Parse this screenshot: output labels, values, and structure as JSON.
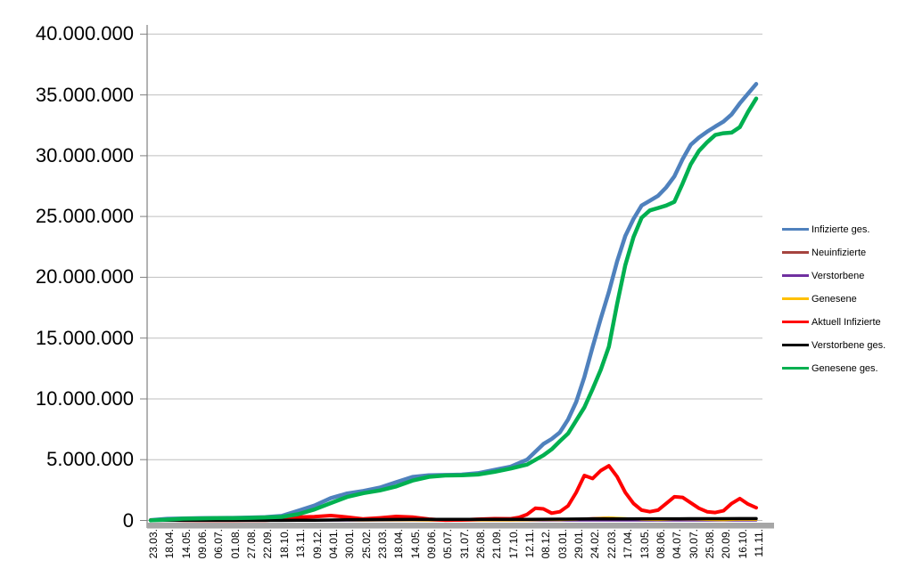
{
  "chart_data": {
    "type": "line",
    "title": "",
    "legend_position": "right",
    "grid": true,
    "y_axis": {
      "unit_millions": true,
      "min": 0,
      "max": 40,
      "ticks": [
        {
          "value": 0,
          "label": "0"
        },
        {
          "value": 5,
          "label": "5.000.000"
        },
        {
          "value": 10,
          "label": "10.000.000"
        },
        {
          "value": 15,
          "label": "15.000.000"
        },
        {
          "value": 20,
          "label": "20.000.000"
        },
        {
          "value": 25,
          "label": "25.000.000"
        },
        {
          "value": 30,
          "label": "30.000.000"
        },
        {
          "value": 35,
          "label": "35.000.000"
        },
        {
          "value": 40,
          "label": "40.000.000"
        }
      ]
    },
    "x_labels": [
      "23.03.",
      "18.04.",
      "14.05.",
      "09.06.",
      "06.07.",
      "01.08.",
      "27.08.",
      "22.09.",
      "18.10.",
      "13.11.",
      "09.12.",
      "04.01.",
      "30.01.",
      "25.02.",
      "23.03.",
      "18.04.",
      "14.05.",
      "09.06.",
      "05.07.",
      "31.07.",
      "26.08.",
      "21.09.",
      "17.10.",
      "12.11.",
      "08.12.",
      "03.01.",
      "29.01.",
      "24.02.",
      "22.03.",
      "17.04.",
      "13.05.",
      "08.06.",
      "04.07.",
      "30.07.",
      "25.08.",
      "20.09.",
      "16.10.",
      "11.11."
    ],
    "series": [
      {
        "id": "infizierte-ges",
        "name": "Infizierte ges.",
        "color": "#4F81BD",
        "line_width": 4.5,
        "x": [
          0,
          1,
          2,
          3,
          4,
          5,
          6,
          7,
          8,
          9,
          10,
          11,
          12,
          13,
          14,
          15,
          16,
          17,
          18,
          19,
          20,
          21,
          22,
          23,
          24,
          24.5,
          25,
          25.5,
          26,
          26.5,
          27,
          27.5,
          28,
          28.5,
          29,
          29.5,
          30,
          30.5,
          31,
          31.5,
          32,
          32.5,
          33,
          33.5,
          34,
          34.5,
          35,
          35.5,
          36,
          36.5,
          37
        ],
        "values": [
          0.03,
          0.14,
          0.17,
          0.19,
          0.2,
          0.21,
          0.24,
          0.28,
          0.37,
          0.8,
          1.22,
          1.84,
          2.22,
          2.43,
          2.7,
          3.15,
          3.58,
          3.71,
          3.74,
          3.77,
          3.89,
          4.16,
          4.42,
          5.0,
          6.29,
          6.7,
          7.24,
          8.3,
          9.74,
          11.8,
          14.25,
          16.6,
          18.8,
          21.3,
          23.4,
          24.8,
          25.9,
          26.3,
          26.7,
          27.4,
          28.3,
          29.7,
          30.9,
          31.5,
          31.97,
          32.4,
          32.8,
          33.4,
          34.3,
          35.1,
          35.9
        ]
      },
      {
        "id": "neuinfizierte",
        "name": "Neuinfizierte",
        "color": "#A5443F",
        "line_width": 2.5,
        "values": [
          0.004,
          0.003,
          0.001,
          0.0005,
          0.0004,
          0.001,
          0.0014,
          0.0019,
          0.007,
          0.019,
          0.022,
          0.018,
          0.014,
          0.009,
          0.016,
          0.022,
          0.012,
          0.003,
          0.0008,
          0.002,
          0.008,
          0.008,
          0.008,
          0.034,
          0.053,
          0.035,
          0.12,
          0.19,
          0.25,
          0.14,
          0.05,
          0.04,
          0.1,
          0.09,
          0.04,
          0.03,
          0.09,
          0.04
        ]
      },
      {
        "id": "verstorbene",
        "name": "Verstorbene",
        "color": "#7030A0",
        "line_width": 2.5,
        "values": [
          0.0002,
          0.0005,
          0.0005,
          0.0003,
          0.0002,
          0.0002,
          0.0002,
          0.0002,
          0.0003,
          0.0006,
          0.0008,
          0.0009,
          0.0008,
          0.0005,
          0.0003,
          0.0003,
          0.0003,
          0.0002,
          0.0001,
          0.0001,
          0.0002,
          0.0002,
          0.0002,
          0.0003,
          0.0004,
          0.0004,
          0.0003,
          0.0003,
          0.0003,
          0.0003,
          0.0002,
          0.0001,
          0.0001,
          0.0002,
          0.0002,
          0.0001,
          0.0002,
          0.0002
        ]
      },
      {
        "id": "genesene",
        "name": "Genesene",
        "color": "#FFC000",
        "line_width": 2.5,
        "values": [
          0.002,
          0.004,
          0.002,
          0.0006,
          0.0004,
          0.0007,
          0.001,
          0.0015,
          0.004,
          0.013,
          0.019,
          0.019,
          0.016,
          0.01,
          0.012,
          0.02,
          0.016,
          0.006,
          0.0015,
          0.0012,
          0.006,
          0.008,
          0.007,
          0.022,
          0.046,
          0.04,
          0.075,
          0.17,
          0.24,
          0.18,
          0.07,
          0.045,
          0.09,
          0.1,
          0.05,
          0.03,
          0.07,
          0.05
        ]
      },
      {
        "id": "aktuell-infizierte",
        "name": "Aktuell Infizierte",
        "color": "#FF0000",
        "line_width": 4,
        "x": [
          0,
          1,
          2,
          3,
          4,
          5,
          6,
          7,
          8,
          9,
          10,
          11,
          12,
          13,
          14,
          15,
          16,
          17,
          18,
          19,
          20,
          21,
          22,
          22.5,
          23,
          23.5,
          24,
          24.5,
          25,
          25.5,
          26,
          26.5,
          27,
          27.5,
          28,
          28.5,
          29,
          29.5,
          30,
          30.5,
          31,
          31.5,
          32,
          32.5,
          33,
          33.5,
          34,
          34.5,
          35,
          35.5,
          36,
          36.5,
          37
        ],
        "values": [
          0.03,
          0.055,
          0.02,
          0.007,
          0.005,
          0.01,
          0.017,
          0.021,
          0.075,
          0.28,
          0.31,
          0.4,
          0.28,
          0.125,
          0.21,
          0.33,
          0.28,
          0.11,
          0.032,
          0.042,
          0.1,
          0.15,
          0.14,
          0.25,
          0.5,
          1.0,
          0.95,
          0.6,
          0.72,
          1.2,
          2.3,
          3.7,
          3.45,
          4.1,
          4.5,
          3.6,
          2.3,
          1.4,
          0.85,
          0.72,
          0.85,
          1.4,
          1.95,
          1.9,
          1.45,
          1.0,
          0.72,
          0.65,
          0.8,
          1.4,
          1.8,
          1.35,
          1.05
        ]
      },
      {
        "id": "verstorbene-ges",
        "name": "Verstorbene ges.",
        "color": "#000000",
        "line_width": 3.5,
        "values": [
          0.0002,
          0.004,
          0.008,
          0.0087,
          0.009,
          0.0092,
          0.0093,
          0.0094,
          0.0098,
          0.012,
          0.02,
          0.035,
          0.056,
          0.069,
          0.075,
          0.08,
          0.086,
          0.089,
          0.091,
          0.0916,
          0.092,
          0.093,
          0.0948,
          0.0975,
          0.104,
          0.112,
          0.1175,
          0.122,
          0.127,
          0.133,
          0.1375,
          0.14,
          0.1417,
          0.1438,
          0.1468,
          0.149,
          0.152,
          0.1555
        ]
      },
      {
        "id": "genesene-ges",
        "name": "Genesene ges.",
        "color": "#00B050",
        "line_width": 4.5,
        "x": [
          0,
          1,
          2,
          3,
          4,
          5,
          6,
          7,
          8,
          9,
          10,
          11,
          12,
          13,
          14,
          15,
          16,
          17,
          18,
          19,
          20,
          21,
          22,
          23,
          24,
          24.5,
          25,
          25.5,
          26,
          26.5,
          27,
          27.5,
          28,
          28.5,
          29,
          29.5,
          30,
          30.5,
          31,
          31.5,
          32,
          32.5,
          33,
          33.5,
          34,
          34.5,
          35,
          35.5,
          36,
          36.5,
          37
        ],
        "values": [
          0.005,
          0.07,
          0.15,
          0.17,
          0.19,
          0.19,
          0.21,
          0.25,
          0.29,
          0.51,
          0.9,
          1.43,
          1.93,
          2.25,
          2.47,
          2.8,
          3.28,
          3.59,
          3.7,
          3.72,
          3.78,
          4.0,
          4.27,
          4.6,
          5.36,
          5.85,
          6.52,
          7.15,
          8.22,
          9.3,
          10.8,
          12.4,
          14.3,
          17.8,
          21.0,
          23.3,
          24.9,
          25.5,
          25.7,
          25.9,
          26.2,
          27.7,
          29.3,
          30.4,
          31.1,
          31.7,
          31.85,
          31.9,
          32.35,
          33.6,
          34.7
        ]
      }
    ],
    "colors": {
      "gridline": "#BFBFBF",
      "axis": "#808080",
      "axis_bar": "#A6A6A6",
      "background": "#FFFFFF"
    }
  }
}
